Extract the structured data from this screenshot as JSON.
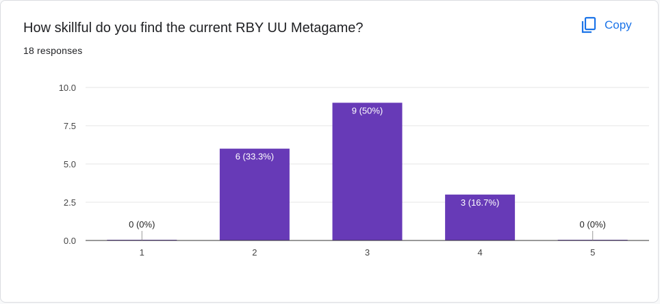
{
  "question": {
    "title": "How skillful do you find the current RBY UU Metagame?",
    "responses": "18 responses"
  },
  "actions": {
    "copy_label": "Copy",
    "copy_icon": "copy-icon"
  },
  "colors": {
    "bar": "#673ab7",
    "accent": "#1a73e8",
    "grid": "#e6e6e6",
    "axis": "#333333",
    "label_inside": "#ffffff",
    "label_outside": "#222222"
  },
  "chart_data": {
    "type": "bar",
    "categories": [
      "1",
      "2",
      "3",
      "4",
      "5"
    ],
    "values": [
      0,
      6,
      9,
      3,
      0
    ],
    "data_labels": [
      "0 (0%)",
      "6 (33.3%)",
      "9 (50%)",
      "3 (16.7%)",
      "0 (0%)"
    ],
    "yticks": [
      "0.0",
      "2.5",
      "5.0",
      "7.5",
      "10.0"
    ],
    "ylim": [
      0,
      10
    ],
    "title": "",
    "xlabel": "",
    "ylabel": "",
    "grid": true,
    "legend": "none"
  }
}
